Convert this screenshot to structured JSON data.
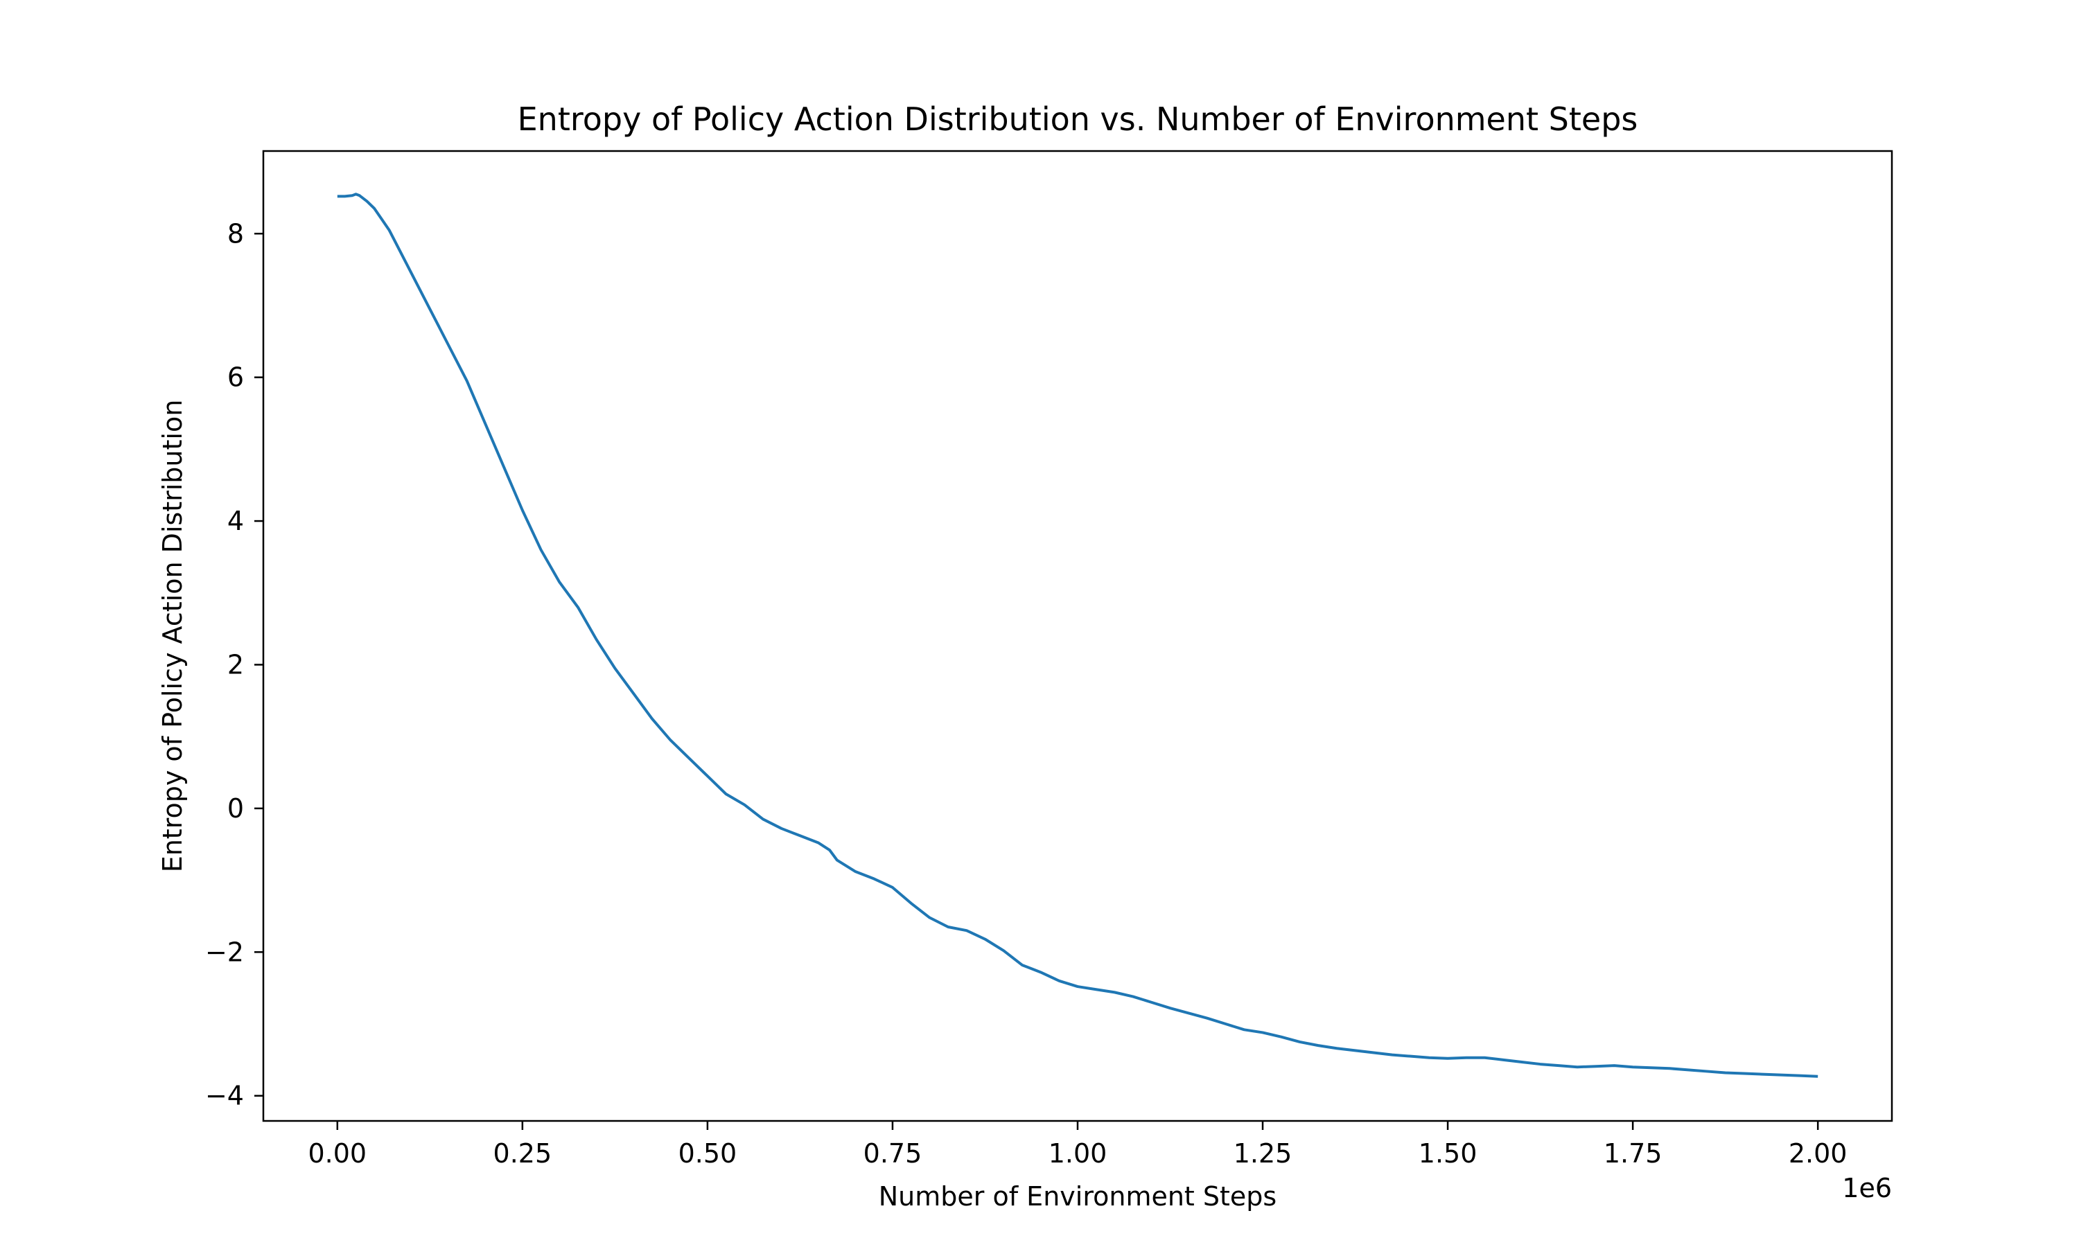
{
  "chart_data": {
    "type": "line",
    "title": "Entropy of Policy Action Distribution vs. Number of Environment Steps",
    "xlabel": "Number of Environment Steps",
    "ylabel": "Entropy of Policy Action Distribution",
    "x_offset_label": "1e6",
    "xlim": [
      -100000,
      2100000
    ],
    "ylim": [
      -4.35,
      9.15
    ],
    "xticks": [
      0,
      250000,
      500000,
      750000,
      1000000,
      1250000,
      1500000,
      1750000,
      2000000
    ],
    "xtick_labels": [
      "0.00",
      "0.25",
      "0.50",
      "0.75",
      "1.00",
      "1.25",
      "1.50",
      "1.75",
      "2.00"
    ],
    "yticks": [
      -4,
      -2,
      0,
      2,
      4,
      6,
      8
    ],
    "ytick_labels": [
      "−4",
      "−2",
      "0",
      "2",
      "4",
      "6",
      "8"
    ],
    "grid": false,
    "series": [
      {
        "color": "#1f77b4",
        "x": [
          0,
          10000,
          20000,
          25000,
          30000,
          40000,
          50000,
          60000,
          70000,
          80000,
          90000,
          100000,
          125000,
          150000,
          175000,
          200000,
          225000,
          250000,
          275000,
          300000,
          325000,
          350000,
          375000,
          400000,
          425000,
          450000,
          475000,
          500000,
          525000,
          550000,
          575000,
          600000,
          625000,
          650000,
          665000,
          675000,
          700000,
          725000,
          750000,
          775000,
          800000,
          825000,
          850000,
          875000,
          900000,
          925000,
          950000,
          975000,
          1000000,
          1025000,
          1050000,
          1075000,
          1100000,
          1125000,
          1150000,
          1175000,
          1200000,
          1225000,
          1250000,
          1275000,
          1300000,
          1325000,
          1350000,
          1375000,
          1400000,
          1425000,
          1450000,
          1475000,
          1500000,
          1525000,
          1550000,
          1575000,
          1600000,
          1625000,
          1650000,
          1675000,
          1700000,
          1725000,
          1750000,
          1775000,
          1800000,
          1825000,
          1850000,
          1875000,
          1900000,
          1925000,
          1950000,
          1975000,
          2000000
        ],
        "y": [
          8.52,
          8.52,
          8.53,
          8.55,
          8.53,
          8.45,
          8.35,
          8.2,
          8.05,
          7.85,
          7.65,
          7.45,
          6.95,
          6.45,
          5.95,
          5.35,
          4.75,
          4.15,
          3.6,
          3.15,
          2.8,
          2.35,
          1.95,
          1.6,
          1.25,
          0.95,
          0.7,
          0.45,
          0.2,
          0.05,
          -0.15,
          -0.28,
          -0.38,
          -0.48,
          -0.58,
          -0.72,
          -0.88,
          -0.98,
          -1.1,
          -1.32,
          -1.52,
          -1.65,
          -1.7,
          -1.82,
          -1.98,
          -2.18,
          -2.28,
          -2.4,
          -2.48,
          -2.52,
          -2.56,
          -2.62,
          -2.7,
          -2.78,
          -2.85,
          -2.92,
          -3.0,
          -3.08,
          -3.12,
          -3.18,
          -3.25,
          -3.3,
          -3.34,
          -3.37,
          -3.4,
          -3.43,
          -3.45,
          -3.47,
          -3.48,
          -3.47,
          -3.47,
          -3.5,
          -3.53,
          -3.56,
          -3.58,
          -3.6,
          -3.59,
          -3.58,
          -3.6,
          -3.61,
          -3.62,
          -3.64,
          -3.66,
          -3.68,
          -3.69,
          -3.7,
          -3.71,
          -3.72,
          -3.73
        ]
      }
    ]
  }
}
